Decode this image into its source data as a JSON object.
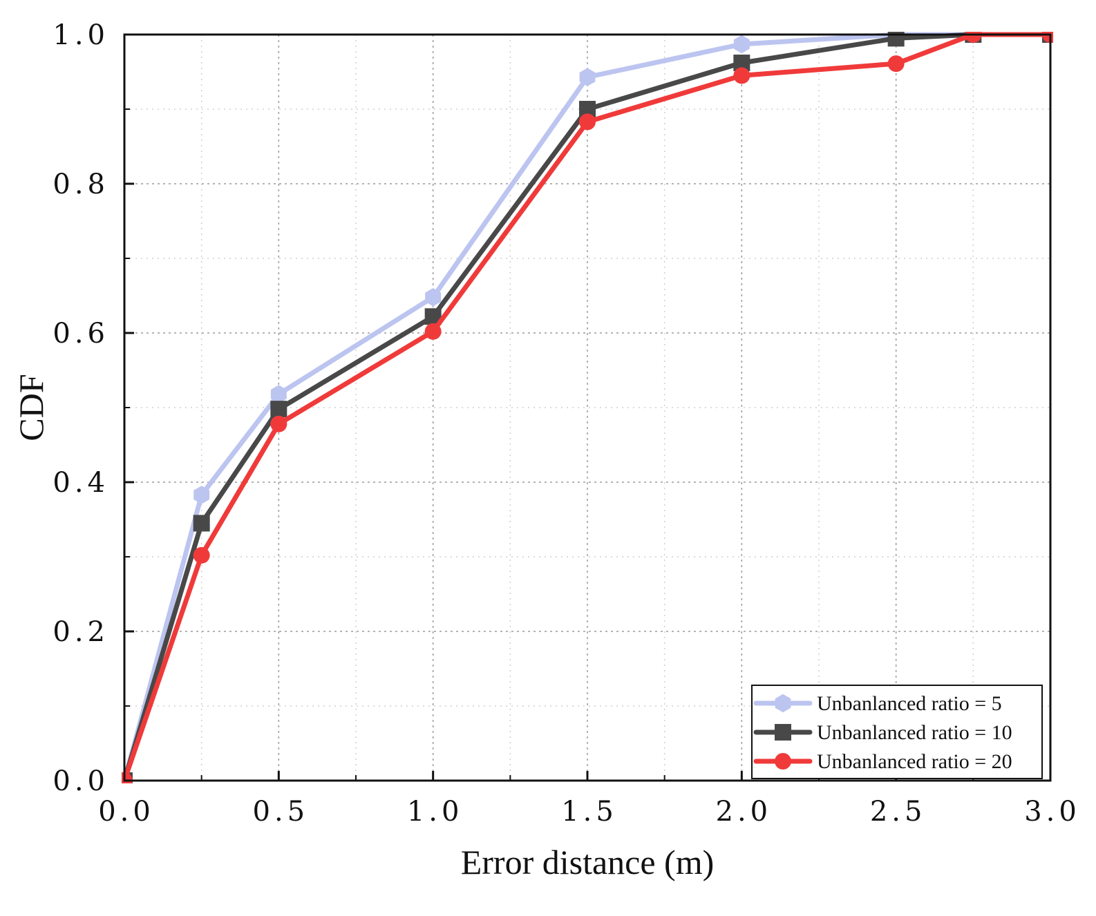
{
  "chart_data": {
    "type": "line",
    "title": "",
    "xlabel": "Error distance (m)",
    "ylabel": "CDF",
    "xlim": [
      0,
      3.0
    ],
    "ylim": [
      0,
      1.0
    ],
    "xticks": [
      0,
      0.5,
      1.0,
      1.5,
      2.0,
      2.5,
      3.0
    ],
    "xtick_labels": [
      "0.0",
      "0.5",
      "1.0",
      "1.5",
      "2.0",
      "2.5",
      "3.0"
    ],
    "yticks": [
      0,
      0.2,
      0.4,
      0.6,
      0.8,
      1.0
    ],
    "ytick_labels": [
      "0.0",
      "0.2",
      "0.4",
      "0.6",
      "0.8",
      "1.0"
    ],
    "grid": true,
    "legend_position": "bottom-right",
    "series": [
      {
        "name": "Unbanlanced ratio = 5",
        "color": "#bcc4f0",
        "marker": "hexagon",
        "x": [
          0,
          0.25,
          0.5,
          1.0,
          1.5,
          2.0,
          2.5,
          2.75,
          3.0
        ],
        "y": [
          0.0,
          0.383,
          0.518,
          0.648,
          0.943,
          0.987,
          1.0,
          1.0,
          1.0
        ]
      },
      {
        "name": "Unbanlanced ratio = 10",
        "color": "#484848",
        "marker": "square",
        "x": [
          0,
          0.25,
          0.5,
          1.0,
          1.5,
          2.0,
          2.5,
          2.75,
          3.0
        ],
        "y": [
          0.0,
          0.345,
          0.498,
          0.622,
          0.9,
          0.962,
          0.995,
          1.0,
          1.0
        ]
      },
      {
        "name": "Unbanlanced ratio = 20",
        "color": "#f03a3a",
        "marker": "circle",
        "x": [
          0,
          0.25,
          0.5,
          1.0,
          1.5,
          2.0,
          2.5,
          2.75,
          3.0
        ],
        "y": [
          0.0,
          0.302,
          0.478,
          0.602,
          0.883,
          0.945,
          0.961,
          1.0,
          1.0
        ]
      }
    ]
  }
}
